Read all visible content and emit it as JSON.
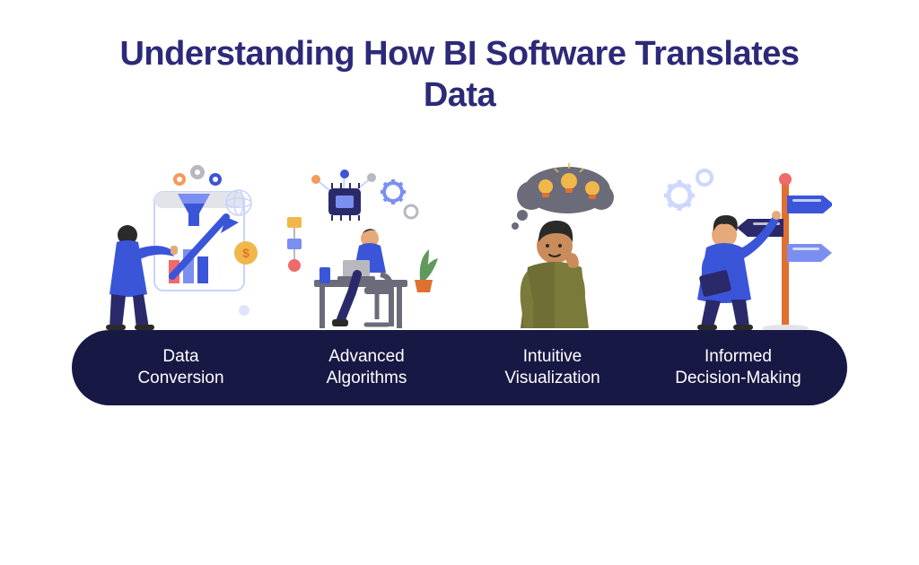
{
  "title": "Understanding How BI Software Translates\nData",
  "title_color": "#2c2a78",
  "title_fontsize": 38,
  "background_color": "#ffffff",
  "pill": {
    "background_color": "#181845",
    "text_color": "#ffffff",
    "border_radius": 46,
    "height": 84,
    "fontsize": 19,
    "items": [
      "Data\nConversion",
      "Advanced\nAlgorithms",
      "Intuitive\nVisualization",
      "Informed\nDecision-Making"
    ]
  },
  "palette": {
    "blue": "#3b55d9",
    "blue_light": "#7b8ff0",
    "blue_pale": "#c8d3ff",
    "navy": "#2a2a6a",
    "olive": "#7a7a3a",
    "olive_dark": "#5c5c2e",
    "skin": "#e6a97a",
    "skin2": "#c98c5a",
    "orange": "#f49a5a",
    "orange_dark": "#e07030",
    "yellow": "#f0b84a",
    "coral": "#ef6a6a",
    "grey": "#6b6b7a",
    "grey_light": "#b8b8c0",
    "grey_pale": "#e3e3ea",
    "green": "#5f9a5c",
    "white": "#ffffff",
    "darkhair": "#2a2a2a"
  },
  "illustrations": [
    {
      "name": "data-conversion-icon"
    },
    {
      "name": "advanced-algorithms-icon"
    },
    {
      "name": "intuitive-visualization-icon"
    },
    {
      "name": "informed-decision-icon"
    }
  ]
}
